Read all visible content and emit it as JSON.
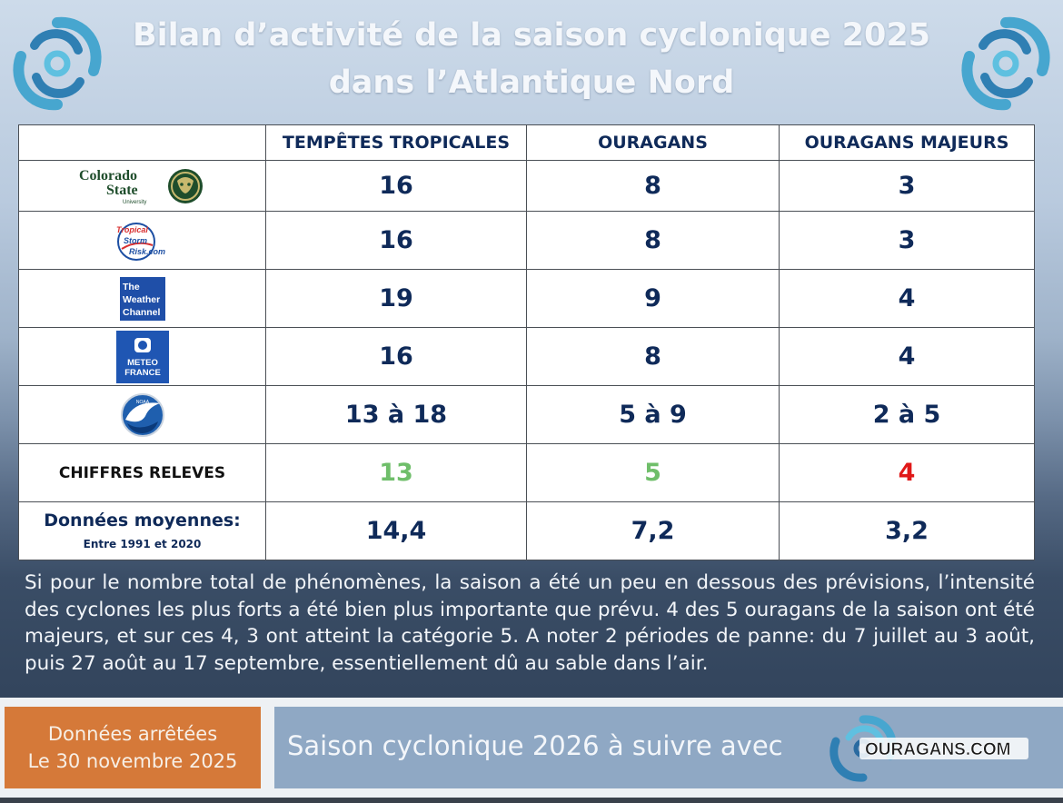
{
  "header": {
    "title_line1": "Bilan d’activité de la saison cyclonique 2025",
    "title_line2": "dans l’Atlantique Nord"
  },
  "table": {
    "columns": [
      "TEMPÊTES TROPICALES",
      "OURAGANS",
      "OURAGANS MAJEURS"
    ],
    "rows": [
      {
        "source": "Colorado State University",
        "logo_text": [
          "Colorado",
          "State",
          "University"
        ],
        "values": [
          "16",
          "8",
          "3"
        ]
      },
      {
        "source": "Tropical Storm Risk",
        "logo_text": [
          "Tropical",
          "Storm",
          "Risk.com"
        ],
        "values": [
          "16",
          "8",
          "3"
        ]
      },
      {
        "source": "The Weather Channel",
        "logo_text": [
          "The",
          "Weather",
          "Channel"
        ],
        "values": [
          "19",
          "9",
          "4"
        ]
      },
      {
        "source": "Météo France",
        "logo_text": [
          "METEO",
          "FRANCE"
        ],
        "values": [
          "16",
          "8",
          "4"
        ]
      },
      {
        "source": "NOAA",
        "logo_text": [
          "NOAA"
        ],
        "values": [
          "13 à 18",
          "5 à 9",
          "2 à 5"
        ]
      }
    ],
    "observed": {
      "label": "CHIFFRES RELEVES",
      "values": [
        "13",
        "5",
        "4"
      ],
      "colors": [
        "#6fbe6a",
        "#6fbe6a",
        "#e01818"
      ]
    },
    "average": {
      "label": "Données moyennes:",
      "sublabel": "Entre 1991 et 2020",
      "values": [
        "14,4",
        "7,2",
        "3,2"
      ]
    }
  },
  "summary": "Si pour le nombre total de phénomènes, la saison a été un peu en dessous des prévisions, l’intensité des cyclones les plus forts a été bien plus importante que prévu. 4 des 5 ouragans de la saison ont été majeurs, et sur ces 4, 3 ont atteint la catégorie 5. A noter 2 périodes de panne: du 7 juillet au 3 août, puis 27 août au 17 septembre, essentiellement dû au sable dans l’air.",
  "footer": {
    "date_line1": "Données arrêtées",
    "date_line2": "Le 30 novembre 2025",
    "follow_text": "Saison cyclonique 2026 à suivre avec",
    "brand": "OURAGANS.COM"
  },
  "colors": {
    "navy": "#0f2a59",
    "green": "#6fbe6a",
    "red": "#e01818",
    "orange": "#d57939",
    "steel": "#8fa8c4"
  },
  "icons": [
    "hurricane-swirl-icon",
    "csu-ram-icon",
    "tsr-globe-icon",
    "twc-logo-icon",
    "meteo-france-logo-icon",
    "noaa-logo-icon"
  ]
}
